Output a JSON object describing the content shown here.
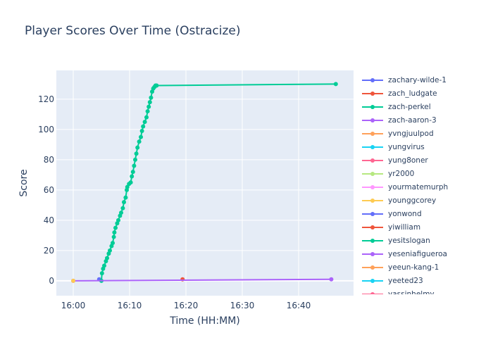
{
  "chart_data": {
    "type": "line",
    "title": "Player Scores Over Time (Ostracize)",
    "xlabel": "Time (HH:MM)",
    "ylabel": "Score",
    "x_unit": "minutes after 16:00",
    "xlim": [
      -3,
      49.75
    ],
    "ylim": [
      -9.8,
      139
    ],
    "xticks": [
      0,
      10,
      20,
      30,
      40
    ],
    "xtick_labels": [
      "16:00",
      "16:10",
      "16:20",
      "16:30",
      "16:40"
    ],
    "yticks": [
      0,
      20,
      40,
      60,
      80,
      100,
      120
    ],
    "grid": true,
    "legend_position": "right",
    "series": [
      {
        "name": "zachary-wilde-1",
        "color": "#636efa",
        "x": [
          4.6
        ],
        "y": [
          1
        ]
      },
      {
        "name": "zach_ludgate",
        "color": "#ef553b",
        "x": [
          19.4
        ],
        "y": [
          1
        ]
      },
      {
        "name": "zach-perkel",
        "color": "#00cc96",
        "x": [
          5.0,
          5.1,
          5.3,
          5.5,
          5.8,
          6.0,
          6.3,
          6.5,
          6.8,
          7.0,
          7.2,
          7.3,
          7.5,
          7.8,
          8.0,
          8.3,
          8.5,
          8.8,
          9.0,
          9.3,
          9.5,
          9.6,
          9.9,
          10.2,
          10.4,
          10.6,
          10.8,
          11.0,
          11.2,
          11.4,
          11.7,
          12.0,
          12.2,
          12.4,
          12.7,
          13.0,
          13.2,
          13.4,
          13.6,
          13.8,
          14.0,
          14.2,
          14.4,
          14.6,
          14.8,
          46.6
        ],
        "y": [
          0,
          5,
          8,
          10,
          13,
          15,
          18,
          20,
          23,
          25,
          29,
          32,
          35,
          38,
          40,
          43,
          45,
          48,
          52,
          55,
          60,
          62,
          64,
          65,
          69,
          72,
          76,
          80,
          84,
          88,
          92,
          95,
          99,
          102,
          105,
          108,
          112,
          115,
          118,
          121,
          125,
          127,
          128,
          129,
          129,
          130
        ]
      },
      {
        "name": "zach-aaron-3",
        "color": "#ab63fa",
        "x": [
          0,
          45.8
        ],
        "y": [
          0,
          1
        ]
      },
      {
        "name": "yvngjuulpod",
        "color": "#ffa15a",
        "x": [],
        "y": []
      },
      {
        "name": "yungvirus",
        "color": "#19d3f3",
        "x": [],
        "y": []
      },
      {
        "name": "yung8oner",
        "color": "#ff6692",
        "x": [],
        "y": []
      },
      {
        "name": "yr2000",
        "color": "#b6e880",
        "x": [],
        "y": []
      },
      {
        "name": "yourmatemurph",
        "color": "#ff97ff",
        "x": [],
        "y": []
      },
      {
        "name": "younggcorey",
        "color": "#fecb52",
        "x": [
          0
        ],
        "y": [
          0
        ]
      },
      {
        "name": "yonwond",
        "color": "#636efa",
        "x": [],
        "y": []
      },
      {
        "name": "yiwilliam",
        "color": "#ef553b",
        "x": [],
        "y": []
      },
      {
        "name": "yesitslogan",
        "color": "#00cc96",
        "x": [],
        "y": []
      },
      {
        "name": "yeseniafigueroa",
        "color": "#ab63fa",
        "x": [],
        "y": []
      },
      {
        "name": "yeeun-kang-1",
        "color": "#ffa15a",
        "x": [],
        "y": []
      },
      {
        "name": "yeeted23",
        "color": "#19d3f3",
        "x": [],
        "y": []
      },
      {
        "name": "yassinhelmy",
        "color": "#ff6692",
        "x": [],
        "y": []
      }
    ]
  }
}
